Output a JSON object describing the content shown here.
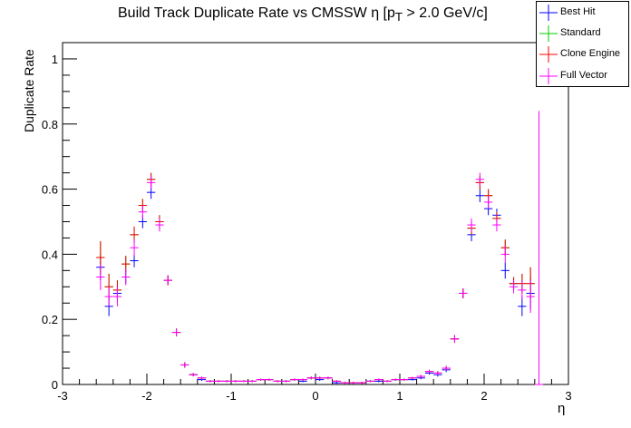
{
  "chart_data": {
    "type": "scatter",
    "title": "Build Track Duplicate Rate vs CMSSW η [p",
    "title_sub": "T",
    "title_tail": " > 2.0 GeV/c]",
    "xlabel": "η",
    "ylabel": "Duplicate Rate",
    "xlim": [
      -3.0,
      3.0
    ],
    "ylim": [
      0,
      1.05
    ],
    "x_ticks": [
      -3,
      -2,
      -1,
      0,
      1,
      2,
      3
    ],
    "x_tick_labels": [
      "-3",
      "-2",
      "-1",
      "0",
      "1",
      "2",
      "3"
    ],
    "y_ticks": [
      0,
      0.2,
      0.4,
      0.6,
      0.8,
      1
    ],
    "y_tick_labels": [
      "0",
      "0.2",
      "0.4",
      "0.6",
      "0.8",
      "1"
    ],
    "bin_half_width": 0.05,
    "legend_position": "top-right",
    "x": [
      -2.55,
      -2.45,
      -2.35,
      -2.25,
      -2.15,
      -2.05,
      -1.95,
      -1.85,
      -1.75,
      -1.65,
      -1.55,
      -1.45,
      -1.35,
      -1.25,
      -1.15,
      -1.05,
      -0.95,
      -0.85,
      -0.75,
      -0.65,
      -0.55,
      -0.45,
      -0.35,
      -0.25,
      -0.15,
      -0.05,
      0.05,
      0.15,
      0.25,
      0.35,
      0.45,
      0.55,
      0.65,
      0.75,
      0.85,
      0.95,
      1.05,
      1.15,
      1.25,
      1.35,
      1.45,
      1.55,
      1.65,
      1.75,
      1.85,
      1.95,
      2.05,
      2.15,
      2.25,
      2.35,
      2.45,
      2.55,
      2.65
    ],
    "series": [
      {
        "name": "Best Hit",
        "color": "#0000ff",
        "values": [
          0.36,
          0.24,
          0.28,
          0.33,
          0.38,
          0.5,
          0.59,
          0.5,
          0.32,
          0.16,
          0.06,
          0.03,
          0.015,
          0.01,
          0.01,
          0.01,
          0.01,
          0.01,
          0.01,
          0.015,
          0.015,
          0.01,
          0.01,
          0.015,
          0.01,
          0.02,
          0.015,
          0.02,
          0.005,
          0.005,
          0.005,
          0.005,
          0.01,
          0.01,
          0.01,
          0.015,
          0.015,
          0.015,
          0.02,
          0.035,
          0.03,
          0.045,
          0.14,
          0.28,
          0.46,
          0.58,
          0.54,
          0.52,
          0.35,
          0.31,
          0.24,
          0.28,
          0.0
        ],
        "errors": [
          0.04,
          0.03,
          0.02,
          0.02,
          0.02,
          0.02,
          0.02,
          0.02,
          0.015,
          0.012,
          0.008,
          0.005,
          0.004,
          0.003,
          0.003,
          0.003,
          0.003,
          0.003,
          0.003,
          0.003,
          0.003,
          0.003,
          0.003,
          0.003,
          0.003,
          0.004,
          0.004,
          0.004,
          0.003,
          0.003,
          0.003,
          0.003,
          0.003,
          0.003,
          0.003,
          0.003,
          0.003,
          0.003,
          0.004,
          0.005,
          0.006,
          0.007,
          0.012,
          0.015,
          0.02,
          0.02,
          0.02,
          0.02,
          0.025,
          0.02,
          0.03,
          0.05,
          0.0
        ]
      },
      {
        "name": "Standard",
        "color": "#00cc00",
        "values": [
          0.39,
          0.3,
          0.29,
          0.37,
          0.46,
          0.55,
          0.63,
          0.5,
          0.32,
          0.16,
          0.06,
          0.03,
          0.02,
          0.01,
          0.01,
          0.01,
          0.01,
          0.01,
          0.01,
          0.015,
          0.015,
          0.01,
          0.01,
          0.015,
          0.015,
          0.02,
          0.02,
          0.02,
          0.01,
          0.005,
          0.005,
          0.005,
          0.01,
          0.015,
          0.01,
          0.015,
          0.015,
          0.02,
          0.025,
          0.04,
          0.035,
          0.05,
          0.14,
          0.28,
          0.48,
          0.62,
          0.58,
          0.51,
          0.42,
          0.31,
          0.31,
          0.31,
          0.0
        ],
        "errors": [
          0.05,
          0.04,
          0.03,
          0.025,
          0.025,
          0.02,
          0.02,
          0.02,
          0.015,
          0.012,
          0.008,
          0.005,
          0.004,
          0.003,
          0.003,
          0.003,
          0.003,
          0.003,
          0.003,
          0.003,
          0.003,
          0.003,
          0.003,
          0.003,
          0.003,
          0.004,
          0.004,
          0.004,
          0.003,
          0.003,
          0.003,
          0.003,
          0.003,
          0.003,
          0.003,
          0.003,
          0.003,
          0.003,
          0.004,
          0.005,
          0.006,
          0.007,
          0.012,
          0.015,
          0.02,
          0.02,
          0.02,
          0.02,
          0.025,
          0.02,
          0.03,
          0.05,
          0.0
        ]
      },
      {
        "name": "Clone Engine",
        "color": "#ff0000",
        "values": [
          0.39,
          0.3,
          0.29,
          0.37,
          0.46,
          0.55,
          0.63,
          0.5,
          0.32,
          0.16,
          0.06,
          0.03,
          0.02,
          0.01,
          0.01,
          0.01,
          0.01,
          0.01,
          0.01,
          0.015,
          0.015,
          0.01,
          0.01,
          0.015,
          0.015,
          0.02,
          0.02,
          0.02,
          0.01,
          0.005,
          0.005,
          0.005,
          0.01,
          0.015,
          0.01,
          0.015,
          0.015,
          0.02,
          0.025,
          0.04,
          0.035,
          0.05,
          0.14,
          0.28,
          0.48,
          0.62,
          0.58,
          0.51,
          0.42,
          0.31,
          0.31,
          0.31,
          0.0
        ],
        "errors": [
          0.05,
          0.04,
          0.03,
          0.025,
          0.025,
          0.02,
          0.02,
          0.02,
          0.015,
          0.012,
          0.008,
          0.005,
          0.004,
          0.003,
          0.003,
          0.003,
          0.003,
          0.003,
          0.003,
          0.003,
          0.003,
          0.003,
          0.003,
          0.003,
          0.003,
          0.004,
          0.004,
          0.004,
          0.003,
          0.003,
          0.003,
          0.003,
          0.003,
          0.003,
          0.003,
          0.003,
          0.003,
          0.003,
          0.004,
          0.005,
          0.006,
          0.007,
          0.012,
          0.015,
          0.02,
          0.02,
          0.02,
          0.02,
          0.025,
          0.02,
          0.03,
          0.05,
          0.0
        ]
      },
      {
        "name": "Full Vector",
        "color": "#ff00ff",
        "values": [
          0.33,
          0.27,
          0.27,
          0.33,
          0.42,
          0.53,
          0.62,
          0.49,
          0.32,
          0.16,
          0.06,
          0.03,
          0.02,
          0.01,
          0.01,
          0.01,
          0.01,
          0.01,
          0.01,
          0.015,
          0.015,
          0.01,
          0.01,
          0.015,
          0.015,
          0.02,
          0.02,
          0.02,
          0.01,
          0.005,
          0.005,
          0.005,
          0.01,
          0.015,
          0.01,
          0.015,
          0.015,
          0.02,
          0.025,
          0.04,
          0.035,
          0.05,
          0.14,
          0.28,
          0.49,
          0.63,
          0.56,
          0.49,
          0.4,
          0.3,
          0.29,
          0.27,
          0.0
        ],
        "errors": [
          0.04,
          0.03,
          0.03,
          0.025,
          0.025,
          0.02,
          0.02,
          0.02,
          0.015,
          0.012,
          0.008,
          0.005,
          0.004,
          0.003,
          0.003,
          0.003,
          0.003,
          0.003,
          0.003,
          0.003,
          0.003,
          0.003,
          0.003,
          0.003,
          0.003,
          0.004,
          0.004,
          0.004,
          0.003,
          0.003,
          0.003,
          0.003,
          0.003,
          0.003,
          0.003,
          0.003,
          0.003,
          0.003,
          0.004,
          0.005,
          0.006,
          0.007,
          0.012,
          0.015,
          0.02,
          0.02,
          0.02,
          0.02,
          0.025,
          0.02,
          0.03,
          0.05,
          0.84
        ]
      }
    ]
  }
}
